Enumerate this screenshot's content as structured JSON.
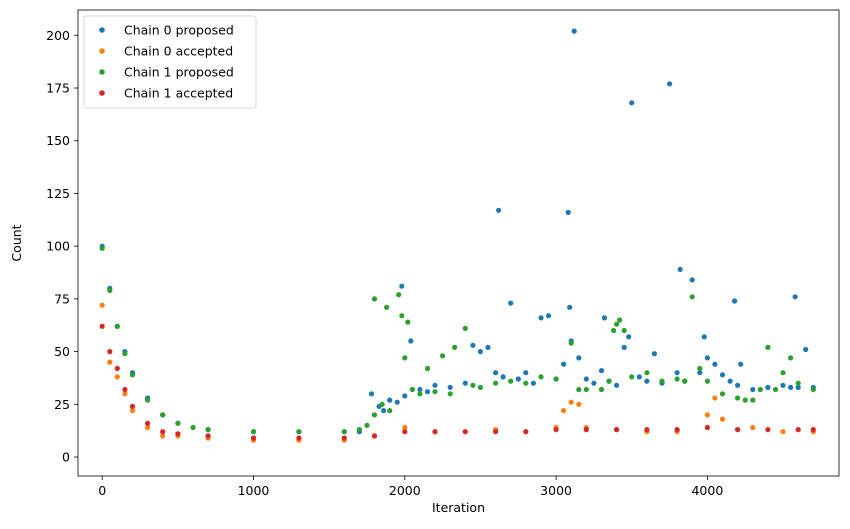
{
  "chart_data": {
    "type": "scatter",
    "title": "",
    "xlabel": "Iteration",
    "ylabel": "Count",
    "xlim": [
      -160,
      4870
    ],
    "ylim": [
      -9,
      212
    ],
    "xticks": [
      0,
      1000,
      2000,
      3000,
      4000
    ],
    "yticks": [
      0,
      25,
      50,
      75,
      100,
      125,
      150,
      175,
      200
    ],
    "xtick_labels": [
      "0",
      "1000",
      "2000",
      "3000",
      "4000"
    ],
    "ytick_labels": [
      "0",
      "25",
      "50",
      "75",
      "100",
      "125",
      "150",
      "175",
      "200"
    ],
    "legend_position": "top-left",
    "grid": false,
    "series": [
      {
        "name": "Chain 0 proposed",
        "color": "#1f77b4",
        "points": [
          [
            0,
            100
          ],
          [
            50,
            80
          ],
          [
            100,
            62
          ],
          [
            150,
            50
          ],
          [
            200,
            40
          ],
          [
            300,
            28
          ],
          [
            400,
            20
          ],
          [
            500,
            16
          ],
          [
            700,
            13
          ],
          [
            1000,
            12
          ],
          [
            1300,
            12
          ],
          [
            1600,
            12
          ],
          [
            1700,
            12
          ],
          [
            1780,
            30
          ],
          [
            1830,
            24
          ],
          [
            1860,
            22
          ],
          [
            1900,
            27
          ],
          [
            1950,
            26
          ],
          [
            1980,
            81
          ],
          [
            2000,
            29
          ],
          [
            2040,
            55
          ],
          [
            2100,
            32
          ],
          [
            2150,
            31
          ],
          [
            2200,
            34
          ],
          [
            2300,
            33
          ],
          [
            2400,
            35
          ],
          [
            2450,
            53
          ],
          [
            2500,
            50
          ],
          [
            2550,
            52
          ],
          [
            2600,
            40
          ],
          [
            2620,
            117
          ],
          [
            2650,
            38
          ],
          [
            2700,
            73
          ],
          [
            2750,
            37
          ],
          [
            2800,
            40
          ],
          [
            2850,
            35
          ],
          [
            2900,
            66
          ],
          [
            2950,
            67
          ],
          [
            3000,
            37
          ],
          [
            3050,
            44
          ],
          [
            3080,
            116
          ],
          [
            3090,
            71
          ],
          [
            3100,
            55
          ],
          [
            3120,
            202
          ],
          [
            3150,
            47
          ],
          [
            3200,
            37
          ],
          [
            3250,
            35
          ],
          [
            3300,
            41
          ],
          [
            3320,
            66
          ],
          [
            3350,
            36
          ],
          [
            3400,
            34
          ],
          [
            3450,
            52
          ],
          [
            3480,
            57
          ],
          [
            3500,
            168
          ],
          [
            3550,
            38
          ],
          [
            3600,
            36
          ],
          [
            3650,
            49
          ],
          [
            3700,
            35
          ],
          [
            3750,
            177
          ],
          [
            3800,
            40
          ],
          [
            3820,
            89
          ],
          [
            3850,
            36
          ],
          [
            3900,
            84
          ],
          [
            3950,
            40
          ],
          [
            3980,
            57
          ],
          [
            4000,
            47
          ],
          [
            4050,
            44
          ],
          [
            4100,
            39
          ],
          [
            4150,
            36
          ],
          [
            4180,
            74
          ],
          [
            4200,
            34
          ],
          [
            4220,
            44
          ],
          [
            4300,
            32
          ],
          [
            4400,
            33
          ],
          [
            4500,
            34
          ],
          [
            4550,
            33
          ],
          [
            4580,
            76
          ],
          [
            4600,
            33
          ],
          [
            4650,
            51
          ],
          [
            4700,
            33
          ]
        ]
      },
      {
        "name": "Chain 0 accepted",
        "color": "#ff7f0e",
        "points": [
          [
            0,
            72
          ],
          [
            50,
            45
          ],
          [
            100,
            38
          ],
          [
            150,
            30
          ],
          [
            200,
            22
          ],
          [
            300,
            14
          ],
          [
            400,
            10
          ],
          [
            500,
            10
          ],
          [
            700,
            9
          ],
          [
            1000,
            8
          ],
          [
            1300,
            8
          ],
          [
            1600,
            8
          ],
          [
            1800,
            10
          ],
          [
            2000,
            14
          ],
          [
            2200,
            12
          ],
          [
            2400,
            12
          ],
          [
            2600,
            13
          ],
          [
            2800,
            12
          ],
          [
            3000,
            14
          ],
          [
            3050,
            22
          ],
          [
            3100,
            26
          ],
          [
            3150,
            25
          ],
          [
            3200,
            14
          ],
          [
            3400,
            13
          ],
          [
            3600,
            12
          ],
          [
            3800,
            12
          ],
          [
            4000,
            20
          ],
          [
            4050,
            28
          ],
          [
            4100,
            18
          ],
          [
            4300,
            14
          ],
          [
            4500,
            12
          ],
          [
            4700,
            12
          ]
        ]
      },
      {
        "name": "Chain 1 proposed",
        "color": "#2ca02c",
        "points": [
          [
            0,
            99
          ],
          [
            50,
            79
          ],
          [
            100,
            62
          ],
          [
            150,
            49
          ],
          [
            200,
            39
          ],
          [
            300,
            27
          ],
          [
            400,
            20
          ],
          [
            500,
            16
          ],
          [
            600,
            14
          ],
          [
            700,
            13
          ],
          [
            1000,
            12
          ],
          [
            1300,
            12
          ],
          [
            1600,
            12
          ],
          [
            1700,
            13
          ],
          [
            1750,
            15
          ],
          [
            1800,
            20
          ],
          [
            1800,
            75
          ],
          [
            1850,
            25
          ],
          [
            1880,
            71
          ],
          [
            1900,
            22
          ],
          [
            1960,
            77
          ],
          [
            1980,
            67
          ],
          [
            2000,
            47
          ],
          [
            2020,
            64
          ],
          [
            2050,
            32
          ],
          [
            2100,
            30
          ],
          [
            2150,
            42
          ],
          [
            2200,
            31
          ],
          [
            2250,
            48
          ],
          [
            2300,
            30
          ],
          [
            2330,
            52
          ],
          [
            2400,
            61
          ],
          [
            2450,
            34
          ],
          [
            2500,
            33
          ],
          [
            2600,
            35
          ],
          [
            2700,
            36
          ],
          [
            2800,
            35
          ],
          [
            2900,
            38
          ],
          [
            3000,
            37
          ],
          [
            3100,
            54
          ],
          [
            3150,
            32
          ],
          [
            3200,
            32
          ],
          [
            3300,
            32
          ],
          [
            3350,
            36
          ],
          [
            3380,
            60
          ],
          [
            3400,
            63
          ],
          [
            3420,
            65
          ],
          [
            3450,
            60
          ],
          [
            3500,
            38
          ],
          [
            3600,
            40
          ],
          [
            3700,
            36
          ],
          [
            3800,
            37
          ],
          [
            3850,
            36
          ],
          [
            3900,
            76
          ],
          [
            3950,
            42
          ],
          [
            4000,
            36
          ],
          [
            4100,
            30
          ],
          [
            4200,
            28
          ],
          [
            4250,
            27
          ],
          [
            4300,
            27
          ],
          [
            4350,
            32
          ],
          [
            4400,
            52
          ],
          [
            4450,
            32
          ],
          [
            4500,
            40
          ],
          [
            4550,
            47
          ],
          [
            4600,
            35
          ],
          [
            4700,
            32
          ]
        ]
      },
      {
        "name": "Chain 1 accepted",
        "color": "#d62728",
        "points": [
          [
            0,
            62
          ],
          [
            50,
            50
          ],
          [
            100,
            42
          ],
          [
            150,
            32
          ],
          [
            200,
            24
          ],
          [
            300,
            16
          ],
          [
            400,
            12
          ],
          [
            500,
            11
          ],
          [
            700,
            10
          ],
          [
            1000,
            9
          ],
          [
            1300,
            9
          ],
          [
            1600,
            9
          ],
          [
            1800,
            10
          ],
          [
            2000,
            12
          ],
          [
            2200,
            12
          ],
          [
            2400,
            12
          ],
          [
            2600,
            12
          ],
          [
            2800,
            12
          ],
          [
            3000,
            13
          ],
          [
            3200,
            13
          ],
          [
            3400,
            13
          ],
          [
            3600,
            13
          ],
          [
            3800,
            13
          ],
          [
            4000,
            14
          ],
          [
            4200,
            13
          ],
          [
            4400,
            13
          ],
          [
            4600,
            13
          ],
          [
            4700,
            13
          ]
        ]
      }
    ]
  }
}
